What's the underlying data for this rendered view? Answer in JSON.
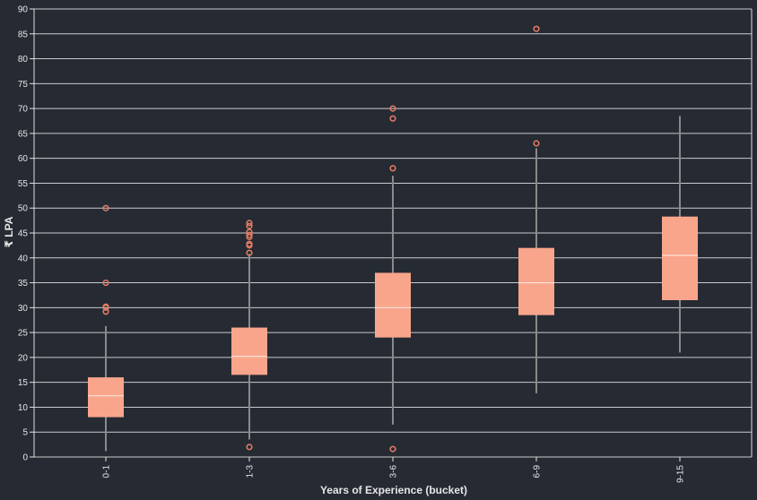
{
  "chart_data": {
    "type": "boxplot",
    "xlabel": "Years of Experience (bucket)",
    "ylabel": "₹ LPA",
    "ylim": [
      0,
      90
    ],
    "yticks": [
      0,
      5,
      10,
      15,
      20,
      25,
      30,
      35,
      40,
      45,
      50,
      55,
      60,
      65,
      70,
      75,
      80,
      85,
      90
    ],
    "grid": true,
    "categories": [
      "0-1",
      "1-3",
      "3-6",
      "6-9",
      "9-15"
    ],
    "series": [
      {
        "whisker_low": 1.2,
        "q1": 8.0,
        "median": 12.3,
        "q3": 16.0,
        "whisker_high": 26.3,
        "outliers": [
          29.2,
          30.0,
          30.2,
          35.0,
          50.0
        ]
      },
      {
        "whisker_low": 3.5,
        "q1": 16.5,
        "median": 20.2,
        "q3": 26.0,
        "whisker_high": 40.8,
        "outliers": [
          2.0,
          41.0,
          42.5,
          42.8,
          44.2,
          44.6,
          45.2,
          46.4,
          47.0
        ]
      },
      {
        "whisker_low": 6.5,
        "q1": 24.0,
        "median": 30.0,
        "q3": 37.0,
        "whisker_high": 56.5,
        "outliers": [
          1.6,
          58.0,
          68.0,
          70.0
        ]
      },
      {
        "whisker_low": 12.8,
        "q1": 28.5,
        "median": 35.0,
        "q3": 42.0,
        "whisker_high": 62.0,
        "outliers": [
          63.0,
          86.0
        ]
      },
      {
        "whisker_low": 21.0,
        "q1": 31.5,
        "median": 40.5,
        "q3": 48.3,
        "whisker_high": 68.5,
        "outliers": []
      }
    ],
    "colors": {
      "background": "#262a33",
      "box_fill": "#f9a58c",
      "median_line": "#fde3d9",
      "whisker": "#8a8a8a",
      "outlier": "#e07b63",
      "grid": "#dcdcdc",
      "axis_text": "#e6e6e6"
    }
  }
}
